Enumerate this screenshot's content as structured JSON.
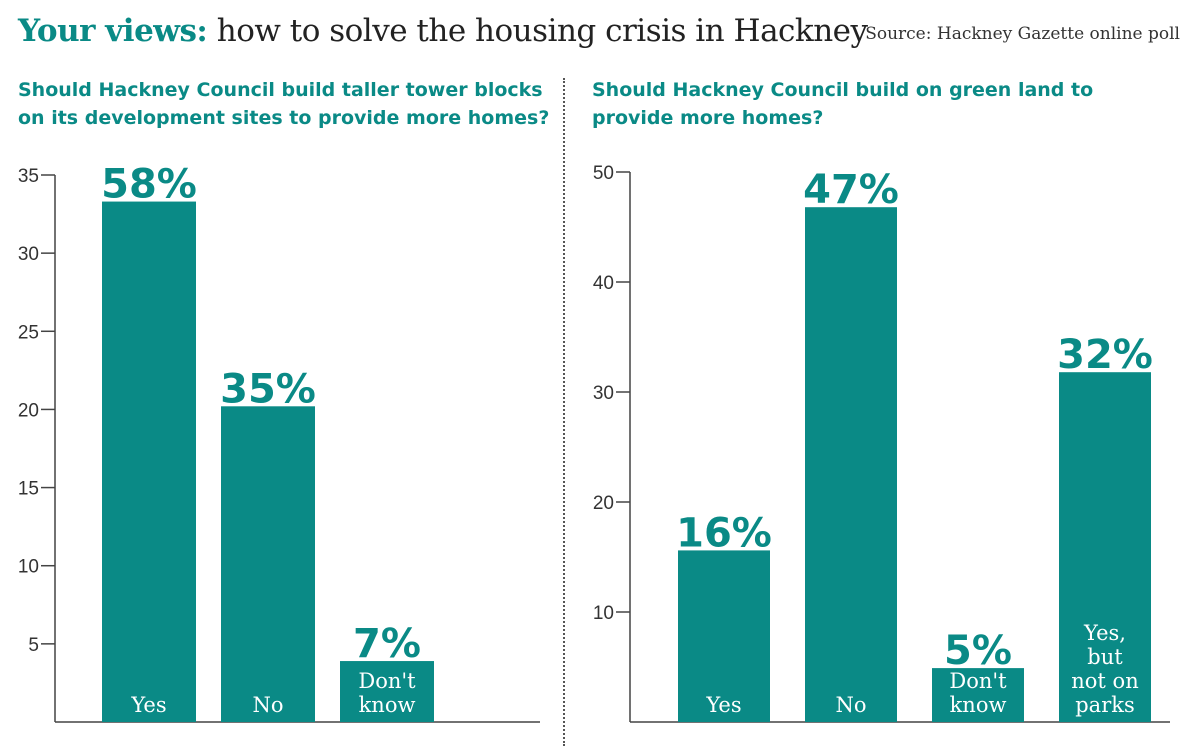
{
  "header": {
    "title_lead": "Your views:",
    "title_rest": "how to solve the housing crisis in Hackney",
    "source": "Source: Hackney Gazette online poll"
  },
  "colors": {
    "accent": "#0a8a86",
    "bar": "#0a8a86"
  },
  "chart_data": [
    {
      "type": "bar",
      "title": "Should Hackney Council build taller tower blocks on its development sites to provide more homes?",
      "categories": [
        [
          "Yes"
        ],
        [
          "No"
        ],
        [
          "Don't",
          "know"
        ]
      ],
      "values": [
        33.3,
        20.2,
        3.9
      ],
      "data_labels": [
        "58%",
        "35%",
        "7%"
      ],
      "yticks": [
        5,
        10,
        15,
        20,
        25,
        30,
        35
      ],
      "ylim": [
        0,
        35
      ]
    },
    {
      "type": "bar",
      "title": "Should Hackney Council build on green land to provide more homes?",
      "categories": [
        [
          "Yes"
        ],
        [
          "No"
        ],
        [
          "Don't",
          "know"
        ],
        [
          "Yes,",
          "but",
          "not on",
          "parks"
        ]
      ],
      "values": [
        15.6,
        46.8,
        4.9,
        31.8
      ],
      "data_labels": [
        "16%",
        "47%",
        "5%",
        "32%"
      ],
      "yticks": [
        10,
        20,
        30,
        40,
        50
      ],
      "ylim": [
        0,
        50
      ]
    }
  ]
}
